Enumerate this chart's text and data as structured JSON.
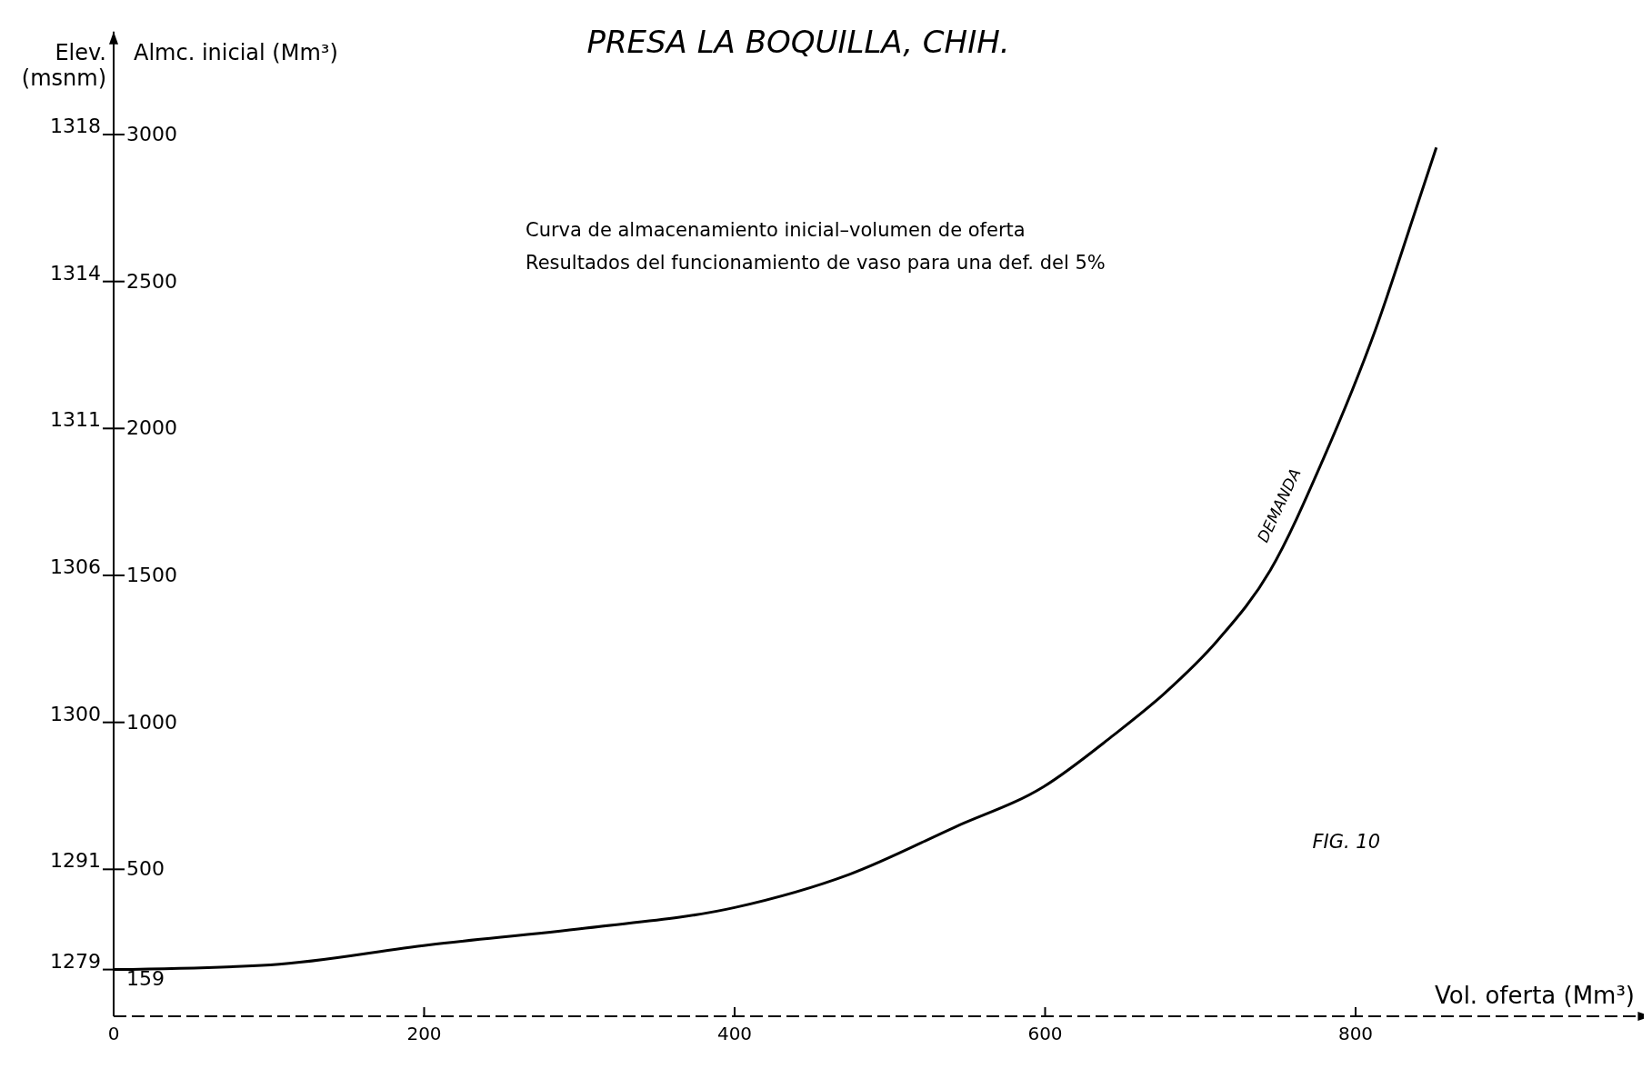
{
  "chart_data": {
    "type": "line",
    "title": "PRESA LA BOQUILLA, CHIH.",
    "xlabel": "Vol. oferta (Mm³)",
    "ylabel": "Almc. inicial (Mm³)",
    "y2label": "Elev. (msnm)",
    "xlim": [
      0,
      990
    ],
    "xticks": [
      0,
      200,
      400,
      600,
      800
    ],
    "ylim": [
      0,
      3350
    ],
    "yticks": [
      159,
      500,
      1000,
      1500,
      2000,
      2500,
      3000
    ],
    "grid": false,
    "marker": "none",
    "line_style": "solid",
    "annotations": [
      "Curva de almacenamiento inicial–volumen de oferta",
      "Resultados del funcionamiento de vaso para una def. del 5%",
      "FIG. 10",
      "1279",
      "1291",
      "1300",
      "1306",
      "1311",
      "1314",
      "1318"
    ],
    "series": [
      {
        "name": "DEMANDA",
        "color": "#000000",
        "x": [
          0,
          101,
          203,
          304,
          400,
          474,
          542,
          599,
          643,
          677,
          711,
          745,
          779,
          813,
          837,
          852
        ],
        "values": [
          159,
          175,
          243,
          300,
          370,
          483,
          644,
          781,
          952,
          1099,
          1278,
          1517,
          1894,
          2339,
          2716,
          2956
        ]
      }
    ]
  }
}
